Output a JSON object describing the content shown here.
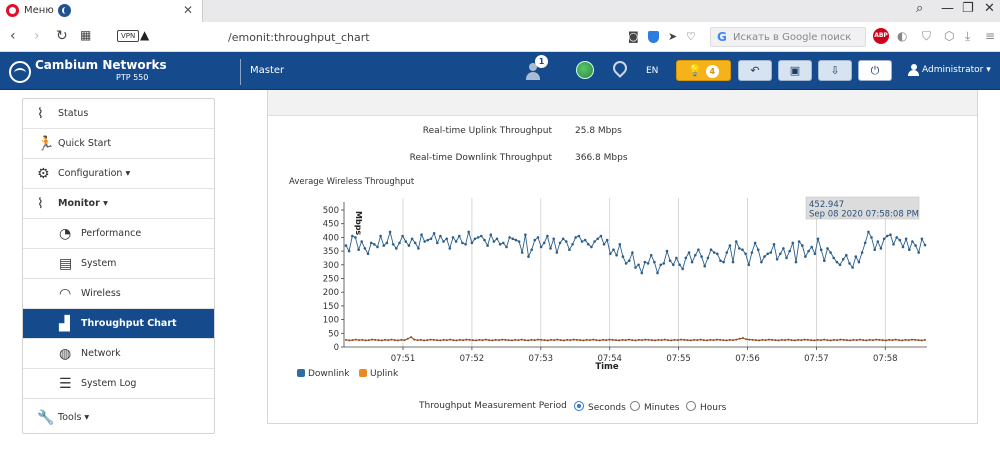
{
  "browser": {
    "tab_title": "Меню",
    "url": "/emonit:throughput_chart",
    "vpn_label": "VPN",
    "search_placeholder": "Искать в Google поиск",
    "adblock_label": "ABP"
  },
  "header": {
    "brand": "Cambium Networks",
    "model": "PTP 550",
    "role": "Master",
    "user_badge": "1",
    "language": "EN",
    "alarm_count": "4",
    "user": "Administrator"
  },
  "sidebar": {
    "items": [
      {
        "label": "Status",
        "icon": "status-icon"
      },
      {
        "label": "Quick Start",
        "icon": "quick-start-icon"
      },
      {
        "label": "Configuration",
        "icon": "gear-icon"
      },
      {
        "label": "Monitor",
        "icon": "monitor-icon"
      },
      {
        "label": "Performance",
        "icon": "gauge-icon"
      },
      {
        "label": "System",
        "icon": "system-icon"
      },
      {
        "label": "Wireless",
        "icon": "wifi-icon"
      },
      {
        "label": "Throughput Chart",
        "icon": "bar-chart-icon"
      },
      {
        "label": "Network",
        "icon": "globe-icon"
      },
      {
        "label": "System Log",
        "icon": "log-icon"
      },
      {
        "label": "Tools",
        "icon": "wrench-icon"
      }
    ]
  },
  "stats": {
    "uplink_label": "Real-time Uplink Throughput",
    "uplink_value": "25.8 Mbps",
    "downlink_label": "Real-time Downlink Throughput",
    "downlink_value": "366.8 Mbps"
  },
  "chart": {
    "title": "Average Wireless Throughput",
    "tooltip_value": "452.947",
    "tooltip_time": "Sep 08 2020 07:58:08 PM"
  },
  "chart_data": {
    "type": "line",
    "title": "Average Wireless Throughput",
    "xlabel": "Time",
    "ylabel": "Mbps",
    "ylim": [
      0,
      500
    ],
    "yticks": [
      0,
      50,
      100,
      150,
      200,
      250,
      300,
      350,
      400,
      450,
      500
    ],
    "xticks": [
      "07:51",
      "07:52",
      "07:53",
      "07:54",
      "07:55",
      "07:56",
      "07:57",
      "07:58"
    ],
    "colors": {
      "Downlink": "#2c5f8a",
      "Uplink": "#8b4a1e"
    },
    "legend_position": "bottom-left",
    "series": [
      {
        "name": "Downlink",
        "values": [
          370,
          350,
          405,
          400,
          355,
          385,
          360,
          340,
          380,
          375,
          365,
          405,
          370,
          380,
          420,
          375,
          360,
          380,
          405,
          385,
          370,
          395,
          380,
          360,
          410,
          385,
          390,
          395,
          415,
          380,
          405,
          385,
          395,
          360,
          400,
          385,
          405,
          380,
          375,
          420,
          380,
          395,
          400,
          405,
          390,
          370,
          410,
          385,
          395,
          375,
          380,
          365,
          400,
          395,
          390,
          385,
          345,
          410,
          330,
          355,
          390,
          400,
          365,
          380,
          405,
          360,
          395,
          345,
          380,
          395,
          385,
          355,
          375,
          400,
          405,
          385,
          390,
          375,
          365,
          385,
          395,
          405,
          375,
          390,
          340,
          355,
          335,
          375,
          330,
          305,
          315,
          345,
          290,
          300,
          270,
          310,
          305,
          335,
          310,
          270,
          300,
          305,
          350,
          315,
          300,
          325,
          300,
          285,
          325,
          345,
          310,
          335,
          355,
          330,
          295,
          325,
          355,
          345,
          340,
          315,
          310,
          345,
          370,
          310,
          385,
          360,
          355,
          340,
          300,
          345,
          380,
          355,
          310,
          330,
          340,
          345,
          375,
          320,
          340,
          360,
          325,
          350,
          380,
          310,
          385,
          370,
          330,
          350,
          365,
          340,
          395,
          355,
          315,
          360,
          345,
          325,
          310,
          300,
          320,
          335,
          305,
          290,
          330,
          310,
          345,
          380,
          420,
          400,
          355,
          385,
          360,
          395,
          405,
          410,
          375,
          400,
          390,
          365,
          395,
          355,
          385,
          370,
          345,
          395,
          372
        ]
      },
      {
        "name": "Uplink",
        "values": [
          26,
          24,
          25,
          27,
          25,
          26,
          24,
          25,
          27,
          26,
          25,
          24,
          26,
          25,
          27,
          25,
          24,
          26,
          25,
          30,
          36,
          27,
          25,
          26,
          24,
          25,
          27,
          26,
          25,
          24,
          26,
          25,
          27,
          25,
          24,
          26,
          25,
          27,
          26,
          25,
          24,
          26,
          25,
          27,
          25,
          24,
          26,
          25,
          27,
          26,
          25,
          24,
          26,
          25,
          27,
          25,
          24,
          26,
          25,
          27,
          26,
          25,
          24,
          26,
          25,
          27,
          25,
          24,
          26,
          25,
          27,
          26,
          25,
          24,
          26,
          25,
          27,
          25,
          24,
          26,
          25,
          27,
          26,
          25,
          24,
          26,
          25,
          27,
          25,
          24,
          26,
          25,
          27,
          26,
          25,
          24,
          26,
          25,
          27,
          25,
          24,
          26,
          25,
          27,
          26,
          25,
          24,
          26,
          25,
          27,
          25,
          24,
          26,
          25,
          27,
          26,
          25,
          24,
          26,
          25,
          27,
          30,
          33,
          28,
          27,
          26,
          25,
          24,
          26,
          25,
          27,
          26,
          25,
          24,
          26,
          25,
          27,
          25,
          24,
          26,
          25,
          27,
          26,
          25,
          24,
          26,
          25,
          27,
          25,
          24,
          26,
          25,
          27,
          26,
          25,
          24,
          26,
          25,
          27,
          25,
          24,
          26,
          25,
          27,
          26,
          25,
          24,
          26,
          25,
          27,
          25,
          24,
          26,
          25,
          27,
          26,
          25,
          24,
          26
        ]
      }
    ]
  },
  "period": {
    "label": "Throughput Measurement Period",
    "options": [
      "Seconds",
      "Minutes",
      "Hours"
    ],
    "selected": "Seconds"
  }
}
